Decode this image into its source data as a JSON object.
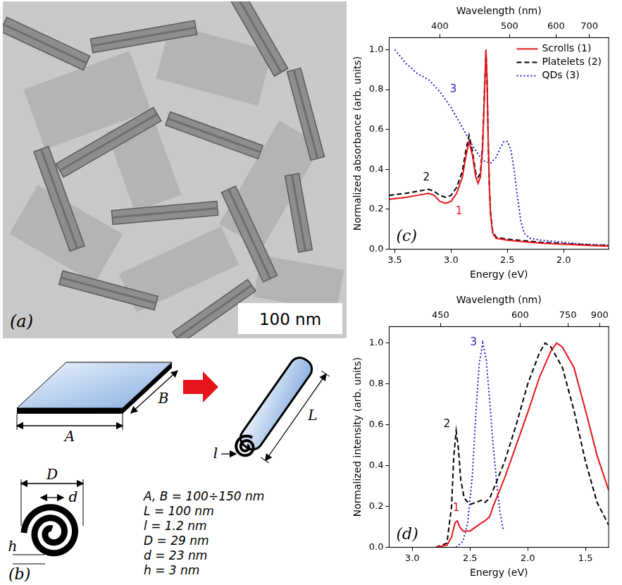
{
  "panel_a": {
    "label": "(a)",
    "scale_bar": "100 nm"
  },
  "panel_b": {
    "label": "(b)",
    "dimension_labels": [
      "A",
      "B",
      "L",
      "l",
      "D",
      "d",
      "h"
    ],
    "parameters": [
      "A, B = 100÷150 nm",
      "L = 100 nm",
      "l = 1.2 nm",
      "D = 29 nm",
      "d = 23 nm",
      "h = 3 nm"
    ]
  },
  "chart_data": [
    {
      "type": "line",
      "panel_label": "(c)",
      "xlabel": "Energy (eV)",
      "x2label": "Wavelength (nm)",
      "ylabel": "Normalized absorbance (arb. units)",
      "xlim": [
        3.55,
        1.6
      ],
      "xticks": [
        3.5,
        {
          "value": 3,
          "label": "3.0"
        },
        2.5,
        {
          "value": 2,
          "label": "2.0"
        }
      ],
      "x2ticks": [
        {
          "value": 3.0996,
          "label": "400"
        },
        {
          "value": 2.4797,
          "label": "500"
        },
        {
          "value": 2.0664,
          "label": "600"
        },
        {
          "value": 1.7712,
          "label": "700"
        }
      ],
      "ylim": [
        0,
        1.06
      ],
      "yticks": [
        {
          "value": 0,
          "label": "0.0"
        },
        0.2,
        0.4,
        0.6,
        0.8,
        {
          "value": 1,
          "label": "1.0"
        }
      ],
      "grid": false,
      "legend": "upper right",
      "series": [
        {
          "name": "Scrolls (1)",
          "color": "#e8141b",
          "line_style": "solid",
          "x": [
            3.55,
            3.4,
            3.3,
            3.2,
            3.15,
            3.1,
            3.05,
            3.0,
            2.95,
            2.9,
            2.87,
            2.84,
            2.81,
            2.78,
            2.76,
            2.74,
            2.72,
            2.705,
            2.69,
            2.68,
            2.67,
            2.66,
            2.65,
            2.63,
            2.6,
            2.5,
            2.4,
            2.3,
            2.2,
            2.0,
            1.8,
            1.6
          ],
          "values": [
            0.25,
            0.26,
            0.27,
            0.28,
            0.27,
            0.24,
            0.23,
            0.24,
            0.28,
            0.36,
            0.46,
            0.54,
            0.47,
            0.36,
            0.33,
            0.36,
            0.5,
            0.75,
            1.0,
            0.85,
            0.55,
            0.32,
            0.18,
            0.08,
            0.055,
            0.045,
            0.04,
            0.035,
            0.03,
            0.025,
            0.02,
            0.015
          ]
        },
        {
          "name": "Platelets (2)",
          "color": "#000000",
          "line_style": "dashed",
          "x": [
            3.55,
            3.4,
            3.3,
            3.2,
            3.15,
            3.1,
            3.05,
            3.0,
            2.95,
            2.9,
            2.87,
            2.84,
            2.81,
            2.78,
            2.76,
            2.74,
            2.72,
            2.705,
            2.69,
            2.68,
            2.67,
            2.66,
            2.65,
            2.63,
            2.6,
            2.5,
            2.4,
            2.3,
            2.2,
            2.0,
            1.8,
            1.6
          ],
          "values": [
            0.27,
            0.28,
            0.29,
            0.3,
            0.29,
            0.27,
            0.26,
            0.27,
            0.31,
            0.39,
            0.49,
            0.57,
            0.49,
            0.38,
            0.36,
            0.38,
            0.52,
            0.76,
            0.99,
            0.84,
            0.54,
            0.32,
            0.19,
            0.09,
            0.06,
            0.05,
            0.045,
            0.04,
            0.035,
            0.028,
            0.022,
            0.018
          ]
        },
        {
          "name": "QDs (3)",
          "color": "#2020d0",
          "line_style": "dotted",
          "x": [
            3.5,
            3.4,
            3.3,
            3.2,
            3.1,
            3.0,
            2.9,
            2.8,
            2.75,
            2.7,
            2.65,
            2.6,
            2.56,
            2.53,
            2.5,
            2.47,
            2.44,
            2.41,
            2.38,
            2.35,
            2.3,
            2.2,
            2.0,
            1.8,
            1.6
          ],
          "values": [
            1.0,
            0.93,
            0.88,
            0.85,
            0.79,
            0.71,
            0.61,
            0.51,
            0.47,
            0.44,
            0.43,
            0.46,
            0.51,
            0.54,
            0.54,
            0.5,
            0.4,
            0.26,
            0.14,
            0.08,
            0.055,
            0.045,
            0.035,
            0.025,
            0.02
          ]
        }
      ],
      "annotations": [
        {
          "text": "1",
          "x": 2.93,
          "y": 0.19,
          "color": "#e8141b"
        },
        {
          "text": "2",
          "x": 3.22,
          "y": 0.36,
          "color": "#000000"
        },
        {
          "text": "3",
          "x": 2.98,
          "y": 0.8,
          "color": "#2020d0"
        }
      ]
    },
    {
      "type": "line",
      "panel_label": "(d)",
      "xlabel": "Energy (eV)",
      "x2label": "Wavelength (nm)",
      "ylabel": "Normalized intensity (arb. units)",
      "xlim": [
        3.2,
        1.3
      ],
      "xticks": [
        {
          "value": 3,
          "label": "3.0"
        },
        2.5,
        {
          "value": 2,
          "label": "2.0"
        },
        1.5
      ],
      "x2ticks": [
        {
          "value": 2.7552,
          "label": "450"
        },
        {
          "value": 2.0664,
          "label": "600"
        },
        {
          "value": 1.6531,
          "label": "750"
        },
        {
          "value": 1.3776,
          "label": "900"
        }
      ],
      "ylim": [
        0,
        1.08
      ],
      "yticks": [
        {
          "value": 0,
          "label": "0.0"
        },
        0.2,
        0.4,
        0.6,
        0.8,
        {
          "value": 1,
          "label": "1.0"
        }
      ],
      "grid": false,
      "series": [
        {
          "name": "Scrolls (1)",
          "color": "#e8141b",
          "line_style": "solid",
          "x": [
            2.8,
            2.7,
            2.66,
            2.63,
            2.61,
            2.59,
            2.56,
            2.5,
            2.45,
            2.4,
            2.37,
            2.33,
            2.3,
            2.2,
            2.1,
            2.0,
            1.9,
            1.8,
            1.75,
            1.7,
            1.6,
            1.5,
            1.4,
            1.3
          ],
          "values": [
            0,
            0.01,
            0.05,
            0.12,
            0.13,
            0.1,
            0.08,
            0.08,
            0.1,
            0.12,
            0.13,
            0.15,
            0.2,
            0.34,
            0.5,
            0.66,
            0.83,
            0.96,
            1.0,
            0.98,
            0.88,
            0.67,
            0.45,
            0.28
          ]
        },
        {
          "name": "Platelets (2)",
          "color": "#000000",
          "line_style": "dashed",
          "x": [
            2.8,
            2.7,
            2.66,
            2.64,
            2.62,
            2.6,
            2.58,
            2.55,
            2.5,
            2.45,
            2.4,
            2.37,
            2.33,
            2.3,
            2.2,
            2.1,
            2.0,
            1.9,
            1.85,
            1.8,
            1.7,
            1.6,
            1.5,
            1.4,
            1.3
          ],
          "values": [
            0,
            0.02,
            0.2,
            0.45,
            0.57,
            0.48,
            0.33,
            0.24,
            0.21,
            0.22,
            0.23,
            0.22,
            0.24,
            0.28,
            0.42,
            0.6,
            0.8,
            0.95,
            1.0,
            0.98,
            0.88,
            0.67,
            0.42,
            0.22,
            0.11
          ]
        },
        {
          "name": "QDs (3)",
          "color": "#2020d0",
          "line_style": "dotted",
          "x": [
            2.62,
            2.56,
            2.52,
            2.48,
            2.45,
            2.42,
            2.39,
            2.36,
            2.33,
            2.3,
            2.27,
            2.24,
            2.21
          ],
          "values": [
            0,
            0.03,
            0.12,
            0.35,
            0.65,
            0.9,
            1.0,
            0.92,
            0.72,
            0.5,
            0.32,
            0.17,
            0.08
          ]
        }
      ],
      "annotations": [
        {
          "text": "1",
          "x": 2.62,
          "y": 0.19,
          "color": "#e8141b"
        },
        {
          "text": "2",
          "x": 2.7,
          "y": 0.6,
          "color": "#000000"
        },
        {
          "text": "3",
          "x": 2.47,
          "y": 1.0,
          "color": "#2020d0"
        }
      ]
    }
  ]
}
